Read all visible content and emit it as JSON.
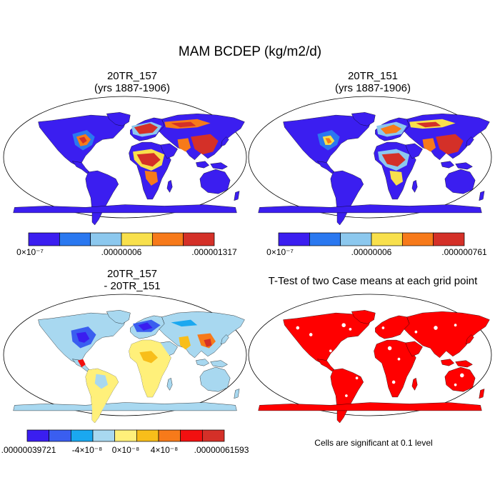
{
  "title": "MAM BCDEP (kg/m2/d)",
  "panels": {
    "p1": {
      "title_line1": "20TR_157",
      "title_line2": "(yrs 1887-1906)",
      "colorbar": {
        "colors": [
          "#3b1ef0",
          "#2a78f0",
          "#8cc8ee",
          "#f8e04c",
          "#f77a1a",
          "#d43028"
        ],
        "labels": [
          "0×10⁻⁷",
          ".00000006",
          ".000001317"
        ]
      }
    },
    "p2": {
      "title_line1": "20TR_151",
      "title_line2": "(yrs 1887-1906)",
      "colorbar": {
        "colors": [
          "#3b1ef0",
          "#2a78f0",
          "#8cc8ee",
          "#f8e04c",
          "#f77a1a",
          "#d43028"
        ],
        "labels": [
          "0×10⁻⁷",
          ".00000006",
          ".000000761"
        ]
      }
    },
    "p3": {
      "title_line1": "20TR_157",
      "title_line2": "- 20TR_151",
      "colorbar": {
        "colors": [
          "#3a1ef0",
          "#3a5ef0",
          "#1aa8f0",
          "#a8d8f0",
          "#fff07a",
          "#f8be1a",
          "#f77a1a",
          "#f21010",
          "#d43028"
        ],
        "labels": [
          ".00000039721",
          "-4×10⁻⁸",
          "0×10⁻⁸",
          "4×10⁻⁸",
          ".00000061593"
        ]
      }
    },
    "p4": {
      "title": "T-Test of two Case means at each grid point",
      "note": "Cells are significant at 0.1 level",
      "color": "#ff0000"
    }
  }
}
